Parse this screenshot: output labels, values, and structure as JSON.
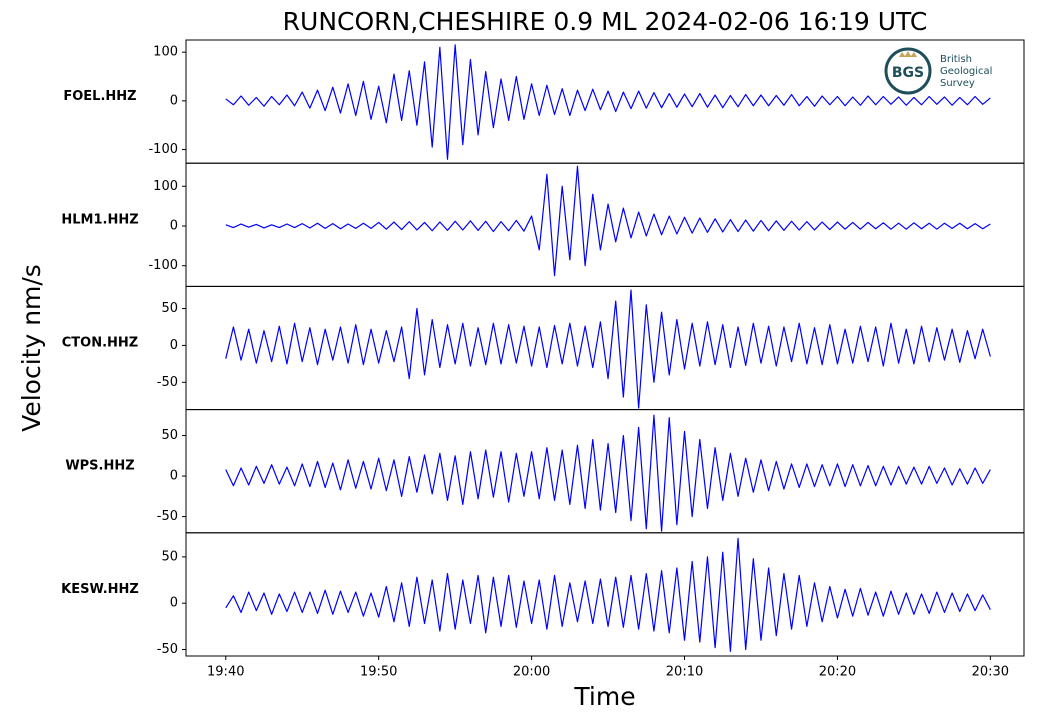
{
  "logo": {
    "abbr": "BGS",
    "lines": [
      "British",
      "Geological",
      "Survey"
    ]
  },
  "chart_data": [
    {
      "type": "line",
      "title": "RUNCORN,CHESHIRE 0.9 ML   2024-02-06 16:19 UTC",
      "ylabel": "Velocity nm/s",
      "station": "FOEL.HHZ",
      "color": "#0000ff",
      "xlim": [
        -2.6,
        52.2
      ],
      "ylim": [
        -128,
        125
      ],
      "yticks": [
        -100,
        0,
        100
      ],
      "x": [
        0,
        0.5,
        1,
        1.5,
        2,
        2.5,
        3,
        3.5,
        4,
        4.5,
        5,
        5.5,
        6,
        6.5,
        7,
        7.5,
        8,
        8.5,
        9,
        9.5,
        10,
        10.5,
        11,
        11.5,
        12,
        12.5,
        13,
        13.5,
        14,
        14.5,
        15,
        15.5,
        16,
        16.5,
        17,
        17.5,
        18,
        18.5,
        19,
        19.5,
        20,
        20.5,
        21,
        21.5,
        22,
        22.5,
        23,
        23.5,
        24,
        24.5,
        25,
        25.5,
        26,
        26.5,
        27,
        27.5,
        28,
        28.5,
        29,
        29.5,
        30,
        30.5,
        31,
        31.5,
        32,
        32.5,
        33,
        33.5,
        34,
        34.5,
        35,
        35.5,
        36,
        36.5,
        37,
        37.5,
        38,
        38.5,
        39,
        39.5,
        40,
        40.5,
        41,
        41.5,
        42,
        42.5,
        43,
        43.5,
        44,
        44.5,
        45,
        45.5,
        46,
        46.5,
        47,
        47.5,
        48,
        48.5,
        49,
        49.5,
        50
      ],
      "values": [
        4,
        -8,
        10,
        -9,
        7,
        -11,
        9,
        -8,
        12,
        -10,
        18,
        -15,
        22,
        -20,
        28,
        -25,
        35,
        -30,
        40,
        -38,
        30,
        -45,
        55,
        -40,
        62,
        -50,
        80,
        -95,
        110,
        -120,
        115,
        -90,
        85,
        -70,
        60,
        -55,
        45,
        -40,
        50,
        -38,
        35,
        -30,
        32,
        -28,
        25,
        -30,
        22,
        -20,
        24,
        -18,
        20,
        -22,
        18,
        -16,
        20,
        -15,
        17,
        -14,
        15,
        -13,
        14,
        -12,
        15,
        -13,
        12,
        -14,
        11,
        -12,
        13,
        -10,
        12,
        -10,
        11,
        -9,
        13,
        -10,
        9,
        -11,
        10,
        -8,
        9,
        -10,
        8,
        -9,
        10,
        -8,
        9,
        -7,
        8,
        -9,
        7,
        -8,
        9,
        -7,
        8,
        -9,
        7,
        -8,
        9,
        -7,
        6
      ]
    },
    {
      "type": "line",
      "station": "HLM1.HHZ",
      "color": "#0000ff",
      "xlim": [
        -2.6,
        52.2
      ],
      "ylim": [
        -152,
        158
      ],
      "yticks": [
        -100,
        0,
        100
      ],
      "x": [
        0,
        0.5,
        1,
        1.5,
        2,
        2.5,
        3,
        3.5,
        4,
        4.5,
        5,
        5.5,
        6,
        6.5,
        7,
        7.5,
        8,
        8.5,
        9,
        9.5,
        10,
        10.5,
        11,
        11.5,
        12,
        12.5,
        13,
        13.5,
        14,
        14.5,
        15,
        15.5,
        16,
        16.5,
        17,
        17.5,
        18,
        18.5,
        19,
        19.5,
        20,
        20.5,
        21,
        21.5,
        22,
        22.5,
        23,
        23.5,
        24,
        24.5,
        25,
        25.5,
        26,
        26.5,
        27,
        27.5,
        28,
        28.5,
        29,
        29.5,
        30,
        30.5,
        31,
        31.5,
        32,
        32.5,
        33,
        33.5,
        34,
        34.5,
        35,
        35.5,
        36,
        36.5,
        37,
        37.5,
        38,
        38.5,
        39,
        39.5,
        40,
        40.5,
        41,
        41.5,
        42,
        42.5,
        43,
        43.5,
        44,
        44.5,
        45,
        45.5,
        46,
        46.5,
        47,
        47.5,
        48,
        48.5,
        49,
        49.5,
        50
      ],
      "values": [
        3,
        -4,
        5,
        -3,
        4,
        -5,
        3,
        -4,
        5,
        -4,
        6,
        -5,
        7,
        -6,
        6,
        -7,
        5,
        -6,
        7,
        -6,
        9,
        -8,
        10,
        -9,
        11,
        -10,
        9,
        -12,
        10,
        -11,
        12,
        -10,
        13,
        -11,
        12,
        -14,
        11,
        -12,
        14,
        -13,
        25,
        -60,
        130,
        -125,
        100,
        -85,
        150,
        -100,
        80,
        -60,
        55,
        -40,
        45,
        -30,
        35,
        -25,
        30,
        -22,
        25,
        -20,
        22,
        -18,
        20,
        -16,
        18,
        -15,
        16,
        -14,
        15,
        -13,
        14,
        -12,
        13,
        -11,
        12,
        -10,
        11,
        -10,
        10,
        -9,
        10,
        -8,
        9,
        -8,
        9,
        -7,
        8,
        -8,
        7,
        -8,
        8,
        -7,
        7,
        -8,
        7,
        -6,
        7,
        -7,
        6,
        -7,
        5
      ]
    },
    {
      "type": "line",
      "station": "CTON.HHZ",
      "color": "#0000ff",
      "xlim": [
        -2.6,
        52.2
      ],
      "ylim": [
        -87,
        80
      ],
      "yticks": [
        -50,
        0,
        50
      ],
      "x": [
        0,
        0.5,
        1,
        1.5,
        2,
        2.5,
        3,
        3.5,
        4,
        4.5,
        5,
        5.5,
        6,
        6.5,
        7,
        7.5,
        8,
        8.5,
        9,
        9.5,
        10,
        10.5,
        11,
        11.5,
        12,
        12.5,
        13,
        13.5,
        14,
        14.5,
        15,
        15.5,
        16,
        16.5,
        17,
        17.5,
        18,
        18.5,
        19,
        19.5,
        20,
        20.5,
        21,
        21.5,
        22,
        22.5,
        23,
        23.5,
        24,
        24.5,
        25,
        25.5,
        26,
        26.5,
        27,
        27.5,
        28,
        28.5,
        29,
        29.5,
        30,
        30.5,
        31,
        31.5,
        32,
        32.5,
        33,
        33.5,
        34,
        34.5,
        35,
        35.5,
        36,
        36.5,
        37,
        37.5,
        38,
        38.5,
        39,
        39.5,
        40,
        40.5,
        41,
        41.5,
        42,
        42.5,
        43,
        43.5,
        44,
        44.5,
        45,
        45.5,
        46,
        46.5,
        47,
        47.5,
        48,
        48.5,
        49,
        49.5,
        50
      ],
      "values": [
        -18,
        25,
        -20,
        22,
        -24,
        20,
        -22,
        26,
        -25,
        30,
        -22,
        24,
        -26,
        22,
        -20,
        25,
        -24,
        28,
        -26,
        22,
        -24,
        20,
        -22,
        25,
        -45,
        50,
        -40,
        35,
        -30,
        28,
        -25,
        30,
        -28,
        24,
        -26,
        30,
        -25,
        28,
        -24,
        26,
        -28,
        25,
        -30,
        27,
        -25,
        30,
        -28,
        26,
        -30,
        32,
        -45,
        60,
        -70,
        75,
        -85,
        55,
        -50,
        45,
        -40,
        35,
        -32,
        30,
        -28,
        32,
        -26,
        28,
        -30,
        25,
        -27,
        30,
        -24,
        26,
        -28,
        25,
        -22,
        30,
        -25,
        24,
        -26,
        28,
        -25,
        22,
        -24,
        26,
        -22,
        25,
        -28,
        30,
        -24,
        22,
        -25,
        26,
        -22,
        24,
        -20,
        22,
        -23,
        20,
        -18,
        22,
        -15
      ]
    },
    {
      "type": "line",
      "station": "WPS.HHZ",
      "color": "#0000ff",
      "xlim": [
        -2.6,
        52.2
      ],
      "ylim": [
        -70,
        82
      ],
      "yticks": [
        -50,
        0,
        50
      ],
      "x": [
        0,
        0.5,
        1,
        1.5,
        2,
        2.5,
        3,
        3.5,
        4,
        4.5,
        5,
        5.5,
        6,
        6.5,
        7,
        7.5,
        8,
        8.5,
        9,
        9.5,
        10,
        10.5,
        11,
        11.5,
        12,
        12.5,
        13,
        13.5,
        14,
        14.5,
        15,
        15.5,
        16,
        16.5,
        17,
        17.5,
        18,
        18.5,
        19,
        19.5,
        20,
        20.5,
        21,
        21.5,
        22,
        22.5,
        23,
        23.5,
        24,
        24.5,
        25,
        25.5,
        26,
        26.5,
        27,
        27.5,
        28,
        28.5,
        29,
        29.5,
        30,
        30.5,
        31,
        31.5,
        32,
        32.5,
        33,
        33.5,
        34,
        34.5,
        35,
        35.5,
        36,
        36.5,
        37,
        37.5,
        38,
        38.5,
        39,
        39.5,
        40,
        40.5,
        41,
        41.5,
        42,
        42.5,
        43,
        43.5,
        44,
        44.5,
        45,
        45.5,
        46,
        46.5,
        47,
        47.5,
        48,
        48.5,
        49,
        49.5,
        50
      ],
      "values": [
        8,
        -12,
        10,
        -11,
        12,
        -9,
        14,
        -10,
        11,
        -12,
        15,
        -13,
        18,
        -14,
        16,
        -17,
        20,
        -15,
        18,
        -16,
        22,
        -18,
        20,
        -25,
        24,
        -20,
        26,
        -22,
        28,
        -30,
        25,
        -35,
        30,
        -28,
        32,
        -26,
        30,
        -32,
        28,
        -25,
        30,
        -28,
        35,
        -30,
        32,
        -35,
        38,
        -40,
        45,
        -42,
        40,
        -45,
        50,
        -55,
        60,
        -65,
        75,
        -68,
        72,
        -60,
        55,
        -50,
        45,
        -40,
        35,
        -30,
        28,
        -25,
        22,
        -20,
        20,
        -18,
        18,
        -16,
        15,
        -14,
        15,
        -13,
        14,
        -12,
        15,
        -13,
        14,
        -12,
        13,
        -12,
        12,
        -11,
        12,
        -10,
        11,
        -10,
        12,
        -9,
        10,
        -11,
        9,
        -10,
        10,
        -9,
        8
      ]
    },
    {
      "type": "line",
      "station": "KESW.HHZ",
      "xlabel": "Time",
      "color": "#0000ff",
      "xlim": [
        -2.6,
        52.2
      ],
      "ylim": [
        -57,
        76
      ],
      "yticks": [
        -50,
        0,
        50
      ],
      "xticks": [
        {
          "value": 0,
          "label": "19:40"
        },
        {
          "value": 10,
          "label": "19:50"
        },
        {
          "value": 20,
          "label": "20:00"
        },
        {
          "value": 30,
          "label": "20:10"
        },
        {
          "value": 40,
          "label": "20:20"
        },
        {
          "value": 50,
          "label": "20:30"
        }
      ],
      "x": [
        0,
        0.5,
        1,
        1.5,
        2,
        2.5,
        3,
        3.5,
        4,
        4.5,
        5,
        5.5,
        6,
        6.5,
        7,
        7.5,
        8,
        8.5,
        9,
        9.5,
        10,
        10.5,
        11,
        11.5,
        12,
        12.5,
        13,
        13.5,
        14,
        14.5,
        15,
        15.5,
        16,
        16.5,
        17,
        17.5,
        18,
        18.5,
        19,
        19.5,
        20,
        20.5,
        21,
        21.5,
        22,
        22.5,
        23,
        23.5,
        24,
        24.5,
        25,
        25.5,
        26,
        26.5,
        27,
        27.5,
        28,
        28.5,
        29,
        29.5,
        30,
        30.5,
        31,
        31.5,
        32,
        32.5,
        33,
        33.5,
        34,
        34.5,
        35,
        35.5,
        36,
        36.5,
        37,
        37.5,
        38,
        38.5,
        39,
        39.5,
        40,
        40.5,
        41,
        41.5,
        42,
        42.5,
        43,
        43.5,
        44,
        44.5,
        45,
        45.5,
        46,
        46.5,
        47,
        47.5,
        48,
        48.5,
        49,
        49.5,
        50
      ],
      "values": [
        -5,
        8,
        -10,
        12,
        -8,
        11,
        -12,
        10,
        -9,
        12,
        -10,
        12,
        -11,
        14,
        -12,
        13,
        -10,
        12,
        -14,
        11,
        -15,
        18,
        -20,
        22,
        -25,
        28,
        -22,
        25,
        -30,
        32,
        -28,
        25,
        -22,
        30,
        -32,
        28,
        -25,
        30,
        -26,
        24,
        -22,
        25,
        -28,
        30,
        -25,
        22,
        -20,
        24,
        -22,
        26,
        -25,
        28,
        -26,
        30,
        -28,
        32,
        -30,
        35,
        -32,
        38,
        -40,
        45,
        -42,
        50,
        -48,
        55,
        -52,
        70,
        -50,
        48,
        -40,
        38,
        -35,
        32,
        -28,
        30,
        -25,
        22,
        -20,
        18,
        -16,
        15,
        -14,
        16,
        -13,
        12,
        -14,
        13,
        -12,
        11,
        -12,
        10,
        -11,
        12,
        -10,
        11,
        -9,
        10,
        -8,
        9,
        -7
      ]
    }
  ]
}
